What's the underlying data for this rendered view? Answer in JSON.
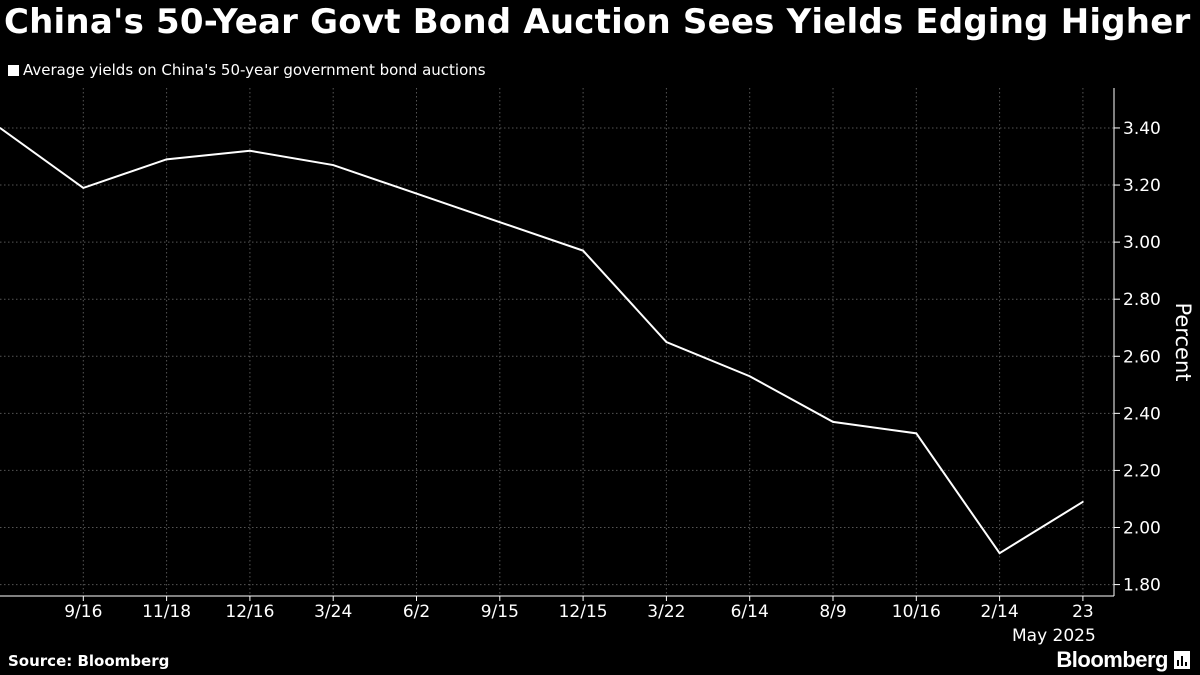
{
  "title": "China's 50-Year Govt Bond Auction Sees Yields Edging Higher",
  "legend": {
    "label": "Average yields on China's 50-year government bond auctions",
    "color": "#ffffff"
  },
  "source": "Source: Bloomberg",
  "brand": {
    "name": "Bloomberg",
    "icon": "bloomberg-terminal-icon"
  },
  "chart_data": {
    "type": "line",
    "series": [
      {
        "name": "Average yields on China's 50-year government bond auctions",
        "color": "#ffffff",
        "values": [
          3.4,
          3.19,
          3.29,
          3.32,
          3.27,
          3.17,
          3.07,
          2.97,
          2.65,
          2.53,
          2.37,
          2.33,
          1.91,
          2.09
        ]
      }
    ],
    "categories": [
      "",
      "9/16",
      "11/18",
      "12/16",
      "3/24",
      "6/2",
      "9/15",
      "12/15",
      "3/22",
      "6/14",
      "8/9",
      "10/16",
      "2/14",
      "23"
    ],
    "x_tick_labels": [
      "9/16",
      "11/18",
      "12/16",
      "3/24",
      "6/2",
      "9/15",
      "12/15",
      "3/22",
      "6/14",
      "8/9",
      "10/16",
      "2/14",
      "23"
    ],
    "x_secondary_label": "May 2025",
    "ylabel": "Percent",
    "y_ticks": [
      "3.40",
      "3.20",
      "3.00",
      "2.80",
      "2.60",
      "2.40",
      "2.20",
      "2.00",
      "1.80"
    ],
    "ylim": [
      1.76,
      3.54
    ],
    "grid": true,
    "y_axis_position": "right",
    "legend_position": "top-left",
    "background": "#000000",
    "grid_color": "#555555"
  }
}
